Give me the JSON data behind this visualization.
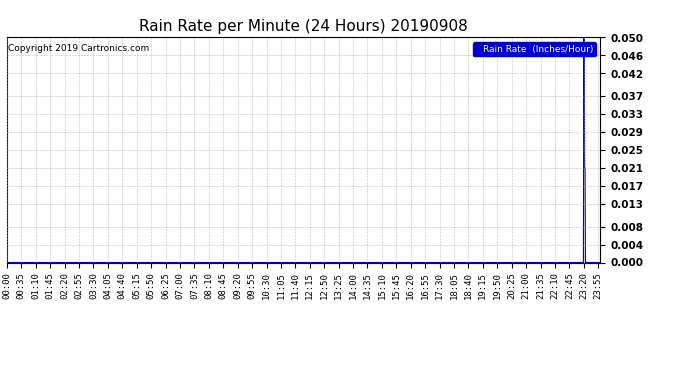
{
  "title": "Rain Rate per Minute (24 Hours) 20190908",
  "copyright_text": "Copyright 2019 Cartronics.com",
  "legend_label": "Rain Rate  (Inches/Hour)",
  "y_ticks": [
    0.0,
    0.004,
    0.008,
    0.013,
    0.017,
    0.021,
    0.025,
    0.029,
    0.033,
    0.037,
    0.042,
    0.046,
    0.05
  ],
  "ylim": [
    0.0,
    0.05
  ],
  "x_tick_labels": [
    "00:00",
    "00:35",
    "01:10",
    "01:45",
    "02:20",
    "02:55",
    "03:30",
    "04:05",
    "04:40",
    "05:15",
    "05:50",
    "06:25",
    "07:00",
    "07:35",
    "08:10",
    "08:45",
    "09:20",
    "09:55",
    "10:30",
    "11:05",
    "11:40",
    "12:15",
    "12:50",
    "13:25",
    "14:00",
    "14:35",
    "15:10",
    "15:45",
    "16:20",
    "16:55",
    "17:30",
    "18:05",
    "18:40",
    "19:15",
    "19:50",
    "20:25",
    "21:00",
    "21:35",
    "22:10",
    "22:45",
    "23:20",
    "23:55"
  ],
  "spike_minute": 1400,
  "spike_value": 0.05,
  "pre_spike_value": 0.021,
  "line_color": "#0000cc",
  "bg_color": "#ffffff",
  "grid_color": "#aaaaaa",
  "legend_bg": "#0000cc",
  "legend_fg": "#ffffff",
  "title_fontsize": 11,
  "tick_fontsize": 6.5,
  "ytick_fontsize": 7.5
}
